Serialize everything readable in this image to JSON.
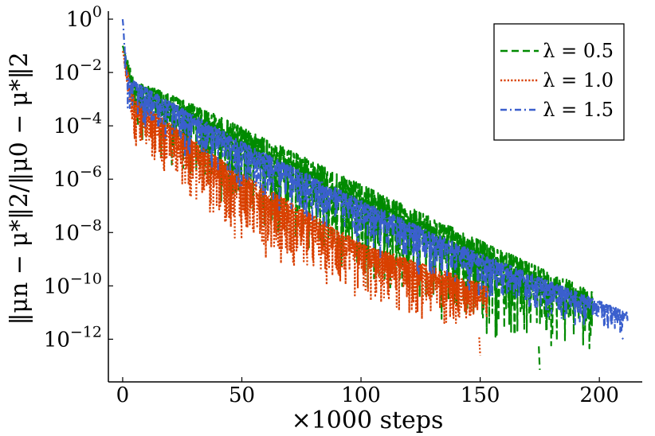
{
  "chart_data": {
    "type": "line",
    "title": "",
    "xlabel": "×1000 steps",
    "ylabel": "‖μn − μ*‖2/‖μ0 − μ*‖2",
    "xlim": [
      -6,
      218
    ],
    "ylim_log10": [
      -13.6,
      0.3
    ],
    "yscale": "log",
    "grid": false,
    "legend_position": "top-right",
    "x_ticks": [
      {
        "value": 0,
        "label": "0"
      },
      {
        "value": 50,
        "label": "50"
      },
      {
        "value": 100,
        "label": "100"
      },
      {
        "value": 150,
        "label": "150"
      },
      {
        "value": 200,
        "label": "200"
      }
    ],
    "y_ticks": [
      {
        "exp": 0,
        "base": "10",
        "sup": "0"
      },
      {
        "exp": -2,
        "base": "10",
        "sup": "−2"
      },
      {
        "exp": -4,
        "base": "10",
        "sup": "−4"
      },
      {
        "exp": -6,
        "base": "10",
        "sup": "−6"
      },
      {
        "exp": -8,
        "base": "10",
        "sup": "−8"
      },
      {
        "exp": -10,
        "base": "10",
        "sup": "−10"
      },
      {
        "exp": -12,
        "base": "10",
        "sup": "−12"
      }
    ],
    "series": [
      {
        "name": "λ = 0.5",
        "color": "#008a00",
        "style": "dashed",
        "x_end": 197,
        "upper_envelope": [
          [
            0,
            -1.0
          ],
          [
            5,
            -2.3
          ],
          [
            30,
            -3.2
          ],
          [
            100,
            -6.2
          ],
          [
            150,
            -8.3
          ],
          [
            197,
            -10.2
          ]
        ],
        "lower_envelope": [
          [
            0,
            -1.2
          ],
          [
            5,
            -4.4
          ],
          [
            30,
            -6.4
          ],
          [
            100,
            -10.0
          ],
          [
            150,
            -12.0
          ],
          [
            197,
            -12.5
          ]
        ],
        "min_point": [
          175,
          -13.15
        ]
      },
      {
        "name": "λ = 1.0",
        "color": "#d94000",
        "style": "dotted",
        "x_end": 153,
        "upper_envelope": [
          [
            0,
            -1.2
          ],
          [
            5,
            -3.0
          ],
          [
            50,
            -5.8
          ],
          [
            100,
            -8.4
          ],
          [
            153,
            -10.0
          ]
        ],
        "lower_envelope": [
          [
            0,
            -1.4
          ],
          [
            5,
            -5.1
          ],
          [
            50,
            -8.5
          ],
          [
            100,
            -10.8
          ],
          [
            153,
            -12.0
          ]
        ],
        "min_point": [
          150,
          -12.6
        ]
      },
      {
        "name": "λ = 1.5",
        "color": "#3a5fcd",
        "style": "dashdot",
        "x_end": 212,
        "upper_envelope": [
          [
            0,
            0.0
          ],
          [
            2,
            -2.2
          ],
          [
            50,
            -4.6
          ],
          [
            100,
            -6.8
          ],
          [
            150,
            -8.8
          ],
          [
            212,
            -11.0
          ]
        ],
        "lower_envelope": [
          [
            0,
            -0.6
          ],
          [
            2,
            -3.8
          ],
          [
            50,
            -6.6
          ],
          [
            100,
            -8.7
          ],
          [
            150,
            -10.6
          ],
          [
            212,
            -12.0
          ]
        ],
        "min_point": [
          210,
          -12.0
        ]
      }
    ]
  }
}
